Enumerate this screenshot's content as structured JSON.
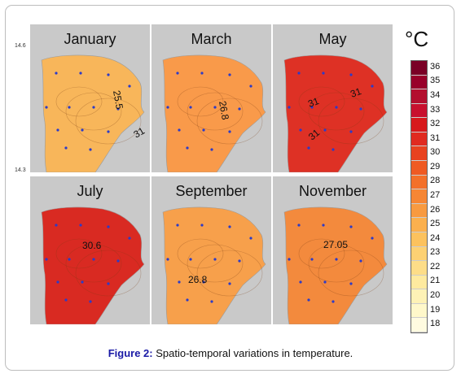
{
  "lat_labels": [
    "14.6",
    "14.3"
  ],
  "legend": {
    "unit": "°C",
    "ticks": [
      "36",
      "35",
      "34",
      "33",
      "32",
      "31",
      "30",
      "29",
      "28",
      "27",
      "26",
      "25",
      "24",
      "23",
      "22",
      "21",
      "20",
      "19",
      "18"
    ],
    "colors": [
      "#7a0026",
      "#98002a",
      "#b30f2e",
      "#c8102e",
      "#d7191c",
      "#e02a20",
      "#e8421f",
      "#ef5a23",
      "#f3702a",
      "#f68634",
      "#f89a40",
      "#fbb04e",
      "#fcc25e",
      "#fdd173",
      "#fddd88",
      "#feea9f",
      "#fef2b6",
      "#fff8ca",
      "#fffbe0"
    ]
  },
  "panels": [
    {
      "name": "January",
      "fill": "#f8b65a",
      "labels": [
        {
          "text": "25.5",
          "x": 102,
          "y": 82,
          "rot": 80
        },
        {
          "text": "31",
          "x": 130,
          "y": 140,
          "rot": -30
        }
      ]
    },
    {
      "name": "March",
      "fill": "#f99a4a",
      "labels": [
        {
          "text": "26.8",
          "x": 83,
          "y": 95,
          "rot": 80
        }
      ]
    },
    {
      "name": "May",
      "fill": "#de3125",
      "labels": [
        {
          "text": "31",
          "x": 45,
          "y": 102,
          "rot": -20
        },
        {
          "text": "31",
          "x": 97,
          "y": 90,
          "rot": -20
        },
        {
          "text": "31",
          "x": 48,
          "y": 143,
          "rot": -40
        }
      ]
    },
    {
      "name": "July",
      "fill": "#d92a22",
      "labels": [
        {
          "text": "30.6",
          "x": 64,
          "y": 89,
          "rot": 0
        }
      ]
    },
    {
      "name": "September",
      "fill": "#f7a04b",
      "labels": [
        {
          "text": "26.8",
          "x": 45,
          "y": 131,
          "rot": 0
        }
      ]
    },
    {
      "name": "November",
      "fill": "#f38a3d",
      "labels": [
        {
          "text": "27.05",
          "x": 62,
          "y": 88,
          "rot": 0
        }
      ]
    }
  ],
  "caption": {
    "label": "Figure 2:",
    "text": " Spatio-temporal variations in temperature."
  }
}
